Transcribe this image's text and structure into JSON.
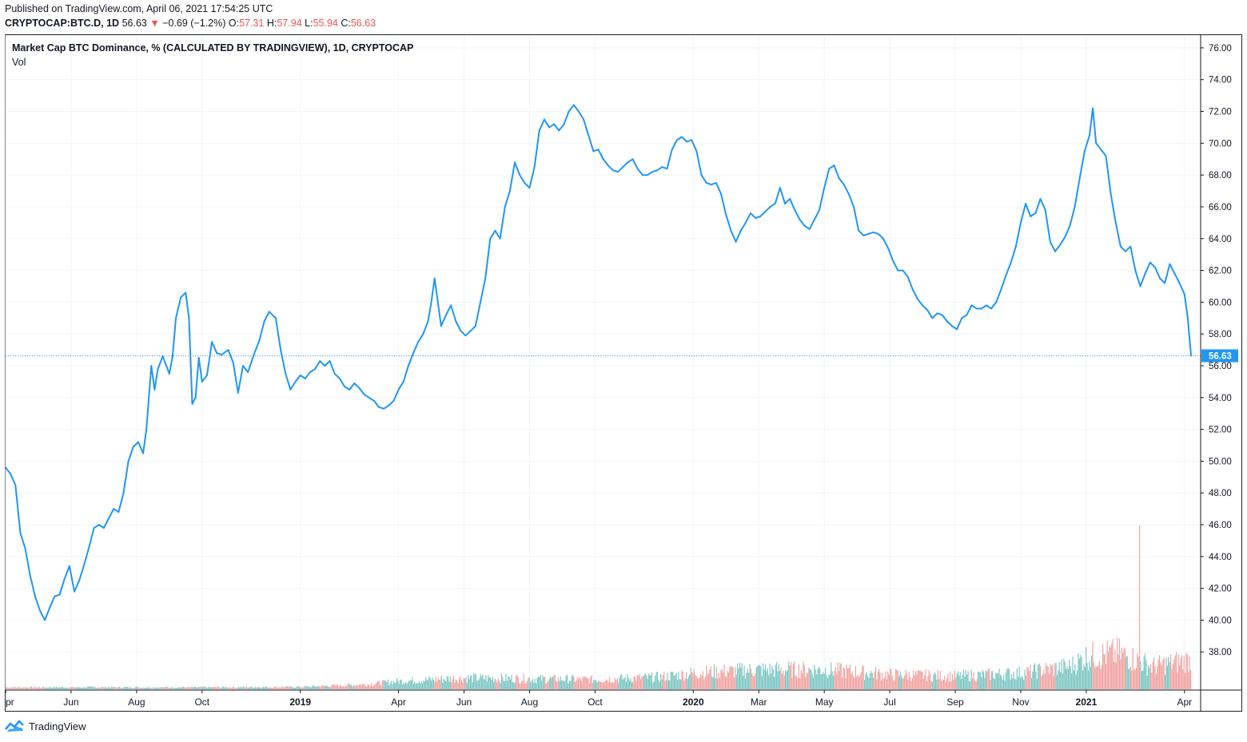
{
  "header": {
    "published": "Published on TradingView.com, April 06, 2021 17:54:25 UTC",
    "symbol": "CRYPTOCAP:BTC.D, 1D",
    "last": "56.63",
    "change_arrow": "▼",
    "change": "−0.69 (−1.2%)",
    "o_label": "O:",
    "o_value": "57.31",
    "h_label": "H:",
    "h_value": "57.94",
    "l_label": "L:",
    "l_value": "55.94",
    "c_label": "C:",
    "c_value": "56.63"
  },
  "legend": {
    "title": "Market Cap BTC Dominance, % (CALCULATED BY TRADINGVIEW), 1D, CRYPTOCAP",
    "vol": "Vol"
  },
  "footer": {
    "brand": "TradingView"
  },
  "colors": {
    "line": "#2196f3",
    "up_volume": "#7fc7c3",
    "down_volume": "#f0a5a3",
    "grid": "#f0f3fa",
    "price_tag": "#2196f3"
  },
  "chart_data": {
    "type": "line",
    "title": "Market Cap BTC Dominance, % (CALCULATED BY TRADINGVIEW), 1D, CRYPTOCAP",
    "ylabel": "%",
    "ylim": [
      35.6,
      76.8
    ],
    "y_ticks": [
      "76.00",
      "74.00",
      "72.00",
      "70.00",
      "68.00",
      "66.00",
      "64.00",
      "62.00",
      "60.00",
      "58.00",
      "56.00",
      "54.00",
      "52.00",
      "50.00",
      "48.00",
      "46.00",
      "44.00",
      "42.00",
      "40.00",
      "38.00"
    ],
    "x_ticks": [
      {
        "label": "pr",
        "t": 0.0
      },
      {
        "label": "Jun",
        "t": 2.0
      },
      {
        "label": "Aug",
        "t": 4.0
      },
      {
        "label": "Oct",
        "t": 6.0
      },
      {
        "label": "2019",
        "t": 9.0
      },
      {
        "label": "Apr",
        "t": 12.0
      },
      {
        "label": "Jun",
        "t": 14.0
      },
      {
        "label": "Aug",
        "t": 16.0
      },
      {
        "label": "Oct",
        "t": 18.0
      },
      {
        "label": "2020",
        "t": 21.0
      },
      {
        "label": "Mar",
        "t": 23.0
      },
      {
        "label": "May",
        "t": 25.0
      },
      {
        "label": "Jul",
        "t": 27.0
      },
      {
        "label": "Sep",
        "t": 29.0
      },
      {
        "label": "Nov",
        "t": 31.0
      },
      {
        "label": "2021",
        "t": 33.0
      },
      {
        "label": "Apr",
        "t": 36.0
      }
    ],
    "x_range_months": [
      0.0,
      36.2
    ],
    "last_value": 56.63,
    "series": [
      {
        "name": "BTC Dominance",
        "points": [
          [
            0.0,
            49.6
          ],
          [
            0.15,
            49.2
          ],
          [
            0.3,
            48.5
          ],
          [
            0.45,
            45.5
          ],
          [
            0.6,
            44.5
          ],
          [
            0.75,
            42.8
          ],
          [
            0.9,
            41.5
          ],
          [
            1.05,
            40.6
          ],
          [
            1.2,
            40.0
          ],
          [
            1.35,
            40.8
          ],
          [
            1.5,
            41.5
          ],
          [
            1.65,
            41.6
          ],
          [
            1.8,
            42.6
          ],
          [
            1.95,
            43.4
          ],
          [
            2.1,
            41.8
          ],
          [
            2.25,
            42.5
          ],
          [
            2.4,
            43.5
          ],
          [
            2.55,
            44.6
          ],
          [
            2.7,
            45.8
          ],
          [
            2.85,
            46.0
          ],
          [
            3.0,
            45.8
          ],
          [
            3.15,
            46.4
          ],
          [
            3.3,
            47.0
          ],
          [
            3.45,
            46.8
          ],
          [
            3.6,
            48.0
          ],
          [
            3.75,
            50.0
          ],
          [
            3.9,
            50.9
          ],
          [
            4.05,
            51.2
          ],
          [
            4.2,
            50.5
          ],
          [
            4.3,
            52.0
          ],
          [
            4.45,
            56.0
          ],
          [
            4.55,
            54.5
          ],
          [
            4.65,
            55.8
          ],
          [
            4.8,
            56.6
          ],
          [
            5.0,
            55.5
          ],
          [
            5.1,
            56.6
          ],
          [
            5.2,
            59.0
          ],
          [
            5.35,
            60.3
          ],
          [
            5.5,
            60.6
          ],
          [
            5.6,
            59.0
          ],
          [
            5.7,
            53.6
          ],
          [
            5.8,
            54.0
          ],
          [
            5.9,
            56.5
          ],
          [
            6.0,
            55.0
          ],
          [
            6.15,
            55.4
          ],
          [
            6.3,
            57.5
          ],
          [
            6.45,
            56.8
          ],
          [
            6.6,
            56.7
          ],
          [
            6.8,
            57.0
          ],
          [
            6.95,
            56.2
          ],
          [
            7.1,
            54.3
          ],
          [
            7.25,
            56.0
          ],
          [
            7.4,
            55.6
          ],
          [
            7.6,
            56.8
          ],
          [
            7.75,
            57.6
          ],
          [
            7.9,
            58.8
          ],
          [
            8.05,
            59.4
          ],
          [
            8.25,
            59.0
          ],
          [
            8.4,
            57.0
          ],
          [
            8.55,
            55.5
          ],
          [
            8.7,
            54.5
          ],
          [
            8.85,
            55.0
          ],
          [
            9.0,
            55.4
          ],
          [
            9.15,
            55.2
          ],
          [
            9.3,
            55.6
          ],
          [
            9.45,
            55.8
          ],
          [
            9.6,
            56.3
          ],
          [
            9.75,
            56.0
          ],
          [
            9.9,
            56.3
          ],
          [
            10.05,
            55.5
          ],
          [
            10.2,
            55.2
          ],
          [
            10.35,
            54.7
          ],
          [
            10.5,
            54.5
          ],
          [
            10.65,
            54.9
          ],
          [
            10.8,
            54.6
          ],
          [
            10.95,
            54.2
          ],
          [
            11.1,
            54.0
          ],
          [
            11.25,
            53.8
          ],
          [
            11.4,
            53.4
          ],
          [
            11.55,
            53.3
          ],
          [
            11.7,
            53.5
          ],
          [
            11.85,
            53.8
          ],
          [
            12.0,
            54.5
          ],
          [
            12.15,
            55.0
          ],
          [
            12.3,
            56.0
          ],
          [
            12.45,
            56.8
          ],
          [
            12.6,
            57.5
          ],
          [
            12.75,
            58.0
          ],
          [
            12.9,
            58.8
          ],
          [
            13.0,
            60.0
          ],
          [
            13.1,
            61.5
          ],
          [
            13.2,
            60.0
          ],
          [
            13.3,
            58.5
          ],
          [
            13.45,
            59.2
          ],
          [
            13.6,
            59.8
          ],
          [
            13.75,
            58.8
          ],
          [
            13.9,
            58.2
          ],
          [
            14.05,
            57.9
          ],
          [
            14.2,
            58.2
          ],
          [
            14.35,
            58.5
          ],
          [
            14.5,
            60.0
          ],
          [
            14.65,
            61.5
          ],
          [
            14.8,
            64.0
          ],
          [
            14.95,
            64.5
          ],
          [
            15.1,
            64.0
          ],
          [
            15.25,
            66.0
          ],
          [
            15.4,
            67.0
          ],
          [
            15.55,
            68.8
          ],
          [
            15.7,
            68.0
          ],
          [
            15.85,
            67.5
          ],
          [
            16.0,
            67.2
          ],
          [
            16.15,
            68.5
          ],
          [
            16.3,
            70.8
          ],
          [
            16.45,
            71.5
          ],
          [
            16.6,
            71.0
          ],
          [
            16.75,
            71.2
          ],
          [
            16.9,
            70.8
          ],
          [
            17.05,
            71.2
          ],
          [
            17.2,
            72.0
          ],
          [
            17.35,
            72.4
          ],
          [
            17.5,
            72.0
          ],
          [
            17.65,
            71.5
          ],
          [
            17.8,
            70.5
          ],
          [
            17.95,
            69.5
          ],
          [
            18.1,
            69.6
          ],
          [
            18.25,
            69.0
          ],
          [
            18.4,
            68.6
          ],
          [
            18.55,
            68.3
          ],
          [
            18.7,
            68.2
          ],
          [
            18.85,
            68.5
          ],
          [
            19.0,
            68.8
          ],
          [
            19.15,
            69.0
          ],
          [
            19.3,
            68.4
          ],
          [
            19.45,
            68.0
          ],
          [
            19.6,
            68.0
          ],
          [
            19.75,
            68.2
          ],
          [
            19.9,
            68.3
          ],
          [
            20.05,
            68.5
          ],
          [
            20.2,
            68.4
          ],
          [
            20.35,
            69.6
          ],
          [
            20.5,
            70.2
          ],
          [
            20.65,
            70.4
          ],
          [
            20.8,
            70.1
          ],
          [
            20.95,
            70.2
          ],
          [
            21.1,
            69.5
          ],
          [
            21.25,
            68.0
          ],
          [
            21.4,
            67.5
          ],
          [
            21.55,
            67.4
          ],
          [
            21.7,
            67.5
          ],
          [
            21.85,
            66.8
          ],
          [
            22.0,
            65.5
          ],
          [
            22.15,
            64.5
          ],
          [
            22.3,
            63.8
          ],
          [
            22.45,
            64.5
          ],
          [
            22.6,
            65.0
          ],
          [
            22.75,
            65.6
          ],
          [
            22.9,
            65.3
          ],
          [
            23.05,
            65.4
          ],
          [
            23.2,
            65.7
          ],
          [
            23.35,
            66.0
          ],
          [
            23.5,
            66.2
          ],
          [
            23.65,
            67.2
          ],
          [
            23.8,
            66.2
          ],
          [
            23.95,
            66.5
          ],
          [
            24.1,
            65.8
          ],
          [
            24.25,
            65.2
          ],
          [
            24.4,
            64.8
          ],
          [
            24.55,
            64.6
          ],
          [
            24.7,
            65.2
          ],
          [
            24.85,
            65.8
          ],
          [
            25.0,
            67.2
          ],
          [
            25.15,
            68.4
          ],
          [
            25.3,
            68.6
          ],
          [
            25.45,
            67.8
          ],
          [
            25.6,
            67.4
          ],
          [
            25.75,
            66.8
          ],
          [
            25.9,
            66.0
          ],
          [
            26.05,
            64.5
          ],
          [
            26.2,
            64.2
          ],
          [
            26.35,
            64.3
          ],
          [
            26.5,
            64.4
          ],
          [
            26.65,
            64.3
          ],
          [
            26.8,
            64.0
          ],
          [
            26.95,
            63.4
          ],
          [
            27.1,
            62.6
          ],
          [
            27.25,
            62.0
          ],
          [
            27.4,
            62.0
          ],
          [
            27.55,
            61.6
          ],
          [
            27.7,
            60.8
          ],
          [
            27.85,
            60.2
          ],
          [
            28.0,
            59.8
          ],
          [
            28.15,
            59.5
          ],
          [
            28.3,
            59.0
          ],
          [
            28.45,
            59.3
          ],
          [
            28.6,
            59.2
          ],
          [
            28.75,
            58.8
          ],
          [
            28.9,
            58.5
          ],
          [
            29.05,
            58.3
          ],
          [
            29.2,
            59.0
          ],
          [
            29.35,
            59.2
          ],
          [
            29.5,
            59.8
          ],
          [
            29.65,
            59.6
          ],
          [
            29.8,
            59.6
          ],
          [
            29.95,
            59.8
          ],
          [
            30.1,
            59.6
          ],
          [
            30.25,
            60.0
          ],
          [
            30.4,
            60.8
          ],
          [
            30.55,
            61.7
          ],
          [
            30.7,
            62.5
          ],
          [
            30.85,
            63.5
          ],
          [
            31.0,
            65.0
          ],
          [
            31.15,
            66.2
          ],
          [
            31.3,
            65.4
          ],
          [
            31.45,
            65.6
          ],
          [
            31.6,
            66.5
          ],
          [
            31.75,
            65.8
          ],
          [
            31.9,
            63.8
          ],
          [
            32.05,
            63.2
          ],
          [
            32.2,
            63.6
          ],
          [
            32.35,
            64.1
          ],
          [
            32.5,
            64.8
          ],
          [
            32.65,
            66.0
          ],
          [
            32.8,
            67.8
          ],
          [
            32.95,
            69.5
          ],
          [
            33.1,
            70.5
          ],
          [
            33.2,
            72.2
          ],
          [
            33.3,
            70.0
          ],
          [
            33.45,
            69.6
          ],
          [
            33.6,
            69.2
          ],
          [
            33.75,
            66.8
          ],
          [
            33.9,
            65.0
          ],
          [
            34.05,
            63.5
          ],
          [
            34.2,
            63.2
          ],
          [
            34.35,
            63.5
          ],
          [
            34.5,
            62.0
          ],
          [
            34.65,
            61.0
          ],
          [
            34.8,
            61.8
          ],
          [
            34.95,
            62.5
          ],
          [
            35.1,
            62.2
          ],
          [
            35.25,
            61.5
          ],
          [
            35.4,
            61.2
          ],
          [
            35.55,
            62.4
          ],
          [
            35.7,
            61.8
          ],
          [
            35.85,
            61.2
          ],
          [
            36.0,
            60.5
          ],
          [
            36.1,
            59.0
          ],
          [
            36.2,
            56.63
          ]
        ]
      }
    ],
    "volume": {
      "name": "Vol",
      "note": "relative volume (max = 1)",
      "segments": [
        [
          0.0,
          0.012
        ],
        [
          3.0,
          0.012
        ],
        [
          6.0,
          0.012
        ],
        [
          9.0,
          0.014
        ],
        [
          11.0,
          0.03
        ],
        [
          12.0,
          0.05
        ],
        [
          14.0,
          0.07
        ],
        [
          16.0,
          0.065
        ],
        [
          18.0,
          0.06
        ],
        [
          20.0,
          0.075
        ],
        [
          21.0,
          0.1
        ],
        [
          23.0,
          0.12
        ],
        [
          25.0,
          0.12
        ],
        [
          27.0,
          0.09
        ],
        [
          29.0,
          0.08
        ],
        [
          31.0,
          0.1
        ],
        [
          32.5,
          0.14
        ],
        [
          33.0,
          0.2
        ],
        [
          34.0,
          0.22
        ],
        [
          35.0,
          0.14
        ],
        [
          36.2,
          0.18
        ]
      ],
      "spike_at": 34.6,
      "spike_value": 1.0
    }
  }
}
